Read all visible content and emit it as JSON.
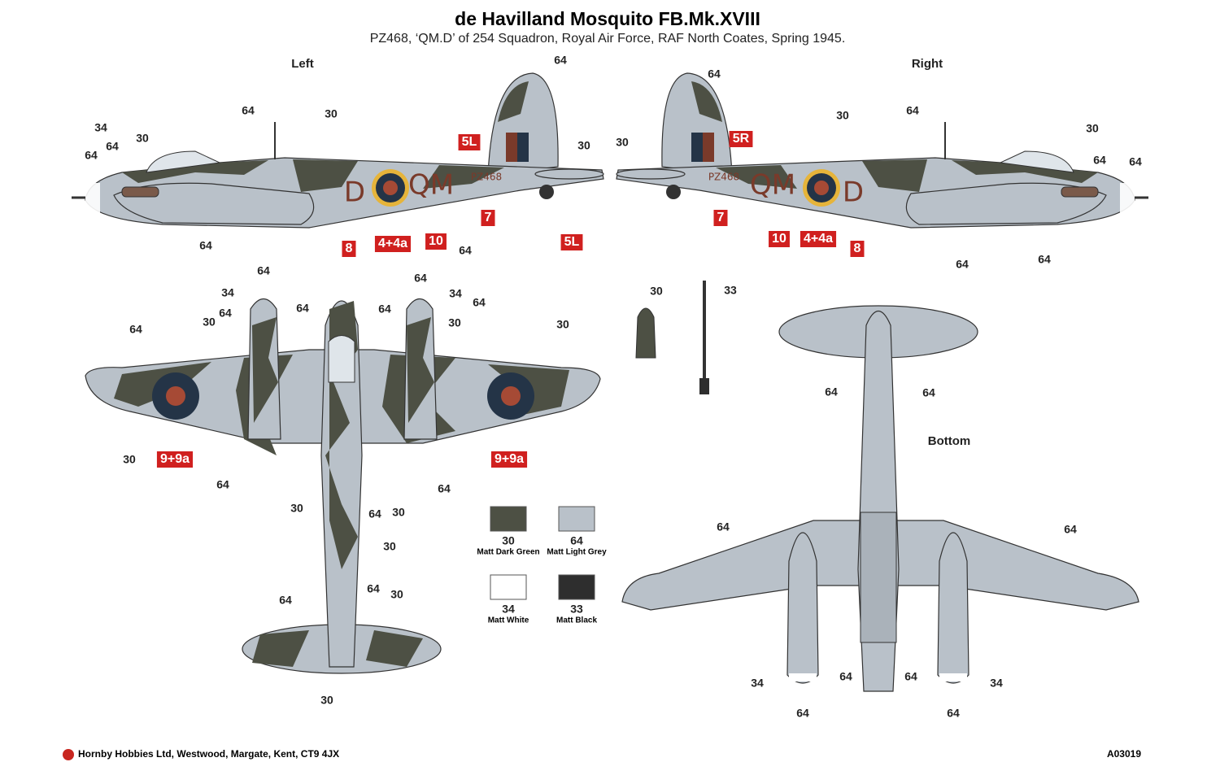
{
  "header": {
    "title": "de Havilland Mosquito FB.Mk.XVIII",
    "subtitle": "PZ468, ‘QM.D’ of 254 Squadron, Royal Air Force, RAF North Coates, Spring 1945."
  },
  "views": {
    "left": {
      "label": "Left",
      "callouts": [
        "64",
        "64",
        "30",
        "34",
        "30",
        "64",
        "64",
        "30",
        "64",
        "64"
      ],
      "decals": [
        "5L",
        "7",
        "8",
        "4+4a",
        "10",
        "5L"
      ],
      "markings": [
        "D",
        "QM",
        "PZ468"
      ]
    },
    "right": {
      "label": "Right",
      "callouts": [
        "64",
        "30",
        "64",
        "30",
        "30",
        "64",
        "64",
        "64",
        "64"
      ],
      "decals": [
        "5R",
        "7",
        "10",
        "4+4a",
        "8"
      ],
      "markings": [
        "QM",
        "D",
        "PZ468"
      ]
    },
    "top": {
      "callouts": [
        "64",
        "34",
        "64",
        "64",
        "30",
        "64",
        "64",
        "64",
        "34",
        "64",
        "30",
        "30",
        "30",
        "64",
        "30",
        "64",
        "30",
        "64",
        "30",
        "64",
        "64",
        "30",
        "30"
      ],
      "decals": [
        "9+9a",
        "9+9a"
      ]
    },
    "stores": {
      "callouts": [
        "30",
        "33"
      ]
    },
    "bottom": {
      "label": "Bottom",
      "callouts": [
        "64",
        "64",
        "64",
        "64",
        "34",
        "64",
        "64",
        "64",
        "34",
        "64"
      ]
    }
  },
  "palette": [
    {
      "code": "30",
      "name": "Matt Dark Green",
      "color": "#4d5044"
    },
    {
      "code": "64",
      "name": "Matt Light Grey",
      "color": "#b9c1c9"
    },
    {
      "code": "34",
      "name": "Matt White",
      "color": "#ffffff"
    },
    {
      "code": "33",
      "name": "Matt Black",
      "color": "#2e2e2e"
    }
  ],
  "footer": {
    "company": "Hornby Hobbies Ltd, Westwood, Margate, Kent, CT9 4JX",
    "ref": "A03019"
  }
}
